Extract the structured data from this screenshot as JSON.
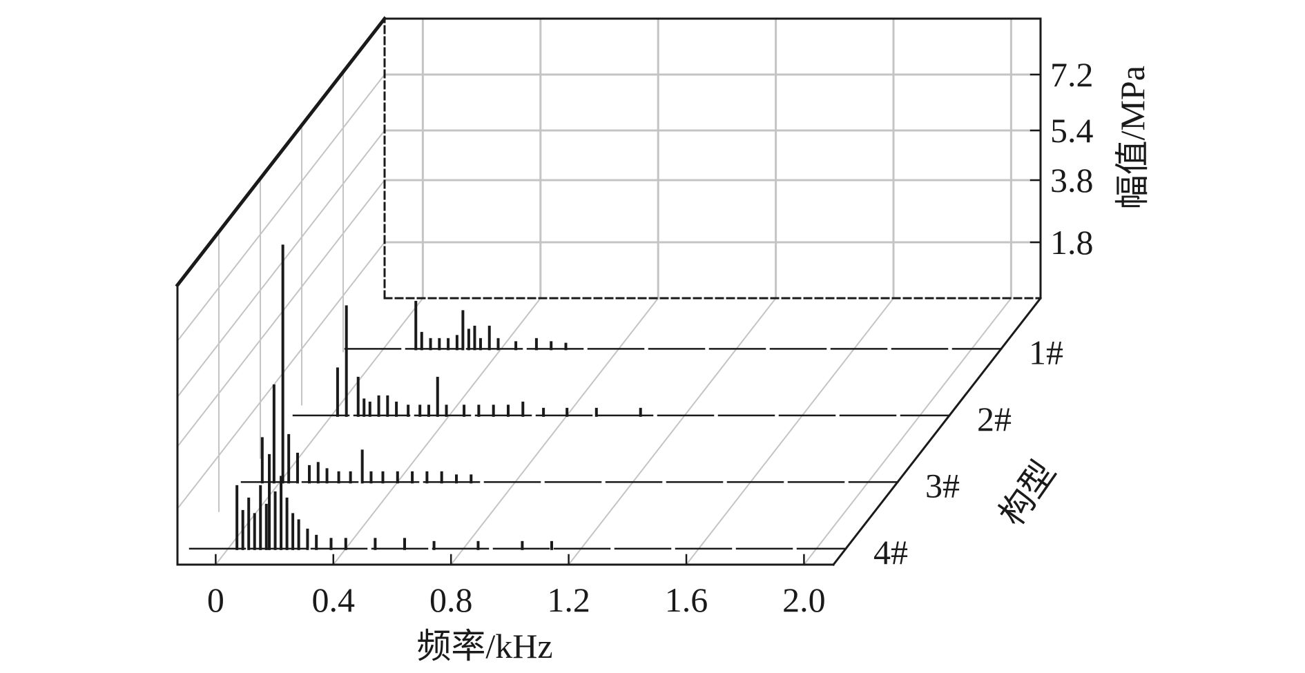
{
  "chart_data": {
    "type": "bar",
    "subtype": "3d-waterfall-spectrum",
    "title": "",
    "xlabel": "频率/kHz",
    "ylabel": "幅值/MPa",
    "zlabel": "构型",
    "x_ticks": [
      "0",
      "0.4",
      "0.8",
      "1.2",
      "1.6",
      "2.0"
    ],
    "y_ticks": [
      "1.8",
      "3.8",
      "5.4",
      "7.2"
    ],
    "xlim": [
      -0.13,
      2.1
    ],
    "ylim": [
      0,
      9.0
    ],
    "grid": true,
    "colors": {
      "bars": "#1a1a1a",
      "grid": "#c4c4c4",
      "axis": "#1a1a1a"
    },
    "series": [
      {
        "name": "1#",
        "points": [
          [
            0.11,
            1.5
          ],
          [
            0.13,
            0.5
          ],
          [
            0.16,
            0.3
          ],
          [
            0.19,
            0.3
          ],
          [
            0.22,
            0.3
          ],
          [
            0.25,
            0.4
          ],
          [
            0.27,
            1.2
          ],
          [
            0.29,
            0.6
          ],
          [
            0.31,
            0.7
          ],
          [
            0.33,
            0.3
          ],
          [
            0.36,
            0.7
          ],
          [
            0.39,
            0.3
          ],
          [
            0.45,
            0.2
          ],
          [
            0.52,
            0.3
          ],
          [
            0.57,
            0.2
          ],
          [
            0.62,
            0.15
          ]
        ]
      },
      {
        "name": "2#",
        "points": [
          [
            0.02,
            1.5
          ],
          [
            0.05,
            3.5
          ],
          [
            0.09,
            1.2
          ],
          [
            0.11,
            0.5
          ],
          [
            0.13,
            0.4
          ],
          [
            0.16,
            0.6
          ],
          [
            0.19,
            0.6
          ],
          [
            0.22,
            0.4
          ],
          [
            0.26,
            0.3
          ],
          [
            0.3,
            0.3
          ],
          [
            0.33,
            0.3
          ],
          [
            0.36,
            1.2
          ],
          [
            0.39,
            0.3
          ],
          [
            0.45,
            0.3
          ],
          [
            0.5,
            0.3
          ],
          [
            0.55,
            0.3
          ],
          [
            0.6,
            0.3
          ],
          [
            0.65,
            0.4
          ],
          [
            0.72,
            0.2
          ],
          [
            0.8,
            0.2
          ],
          [
            0.9,
            0.2
          ],
          [
            1.05,
            0.2
          ]
        ]
      },
      {
        "name": "3#",
        "points": [
          [
            -0.06,
            1.4
          ],
          [
            -0.02,
            3.1
          ],
          [
            0.01,
            7.6
          ],
          [
            0.03,
            1.5
          ],
          [
            0.06,
            0.9
          ],
          [
            0.1,
            0.5
          ],
          [
            0.13,
            0.6
          ],
          [
            0.16,
            0.4
          ],
          [
            0.2,
            0.3
          ],
          [
            0.24,
            0.3
          ],
          [
            0.28,
            1.0
          ],
          [
            0.31,
            0.3
          ],
          [
            0.35,
            0.3
          ],
          [
            0.4,
            0.3
          ],
          [
            0.45,
            0.3
          ],
          [
            0.5,
            0.3
          ],
          [
            0.55,
            0.3
          ],
          [
            0.6,
            0.2
          ],
          [
            0.65,
            0.2
          ]
        ]
      },
      {
        "name": "4#",
        "points": [
          [
            0.03,
            2.0
          ],
          [
            0.05,
            1.2
          ],
          [
            0.07,
            1.6
          ],
          [
            0.09,
            1.1
          ],
          [
            0.11,
            2.0
          ],
          [
            0.13,
            1.4
          ],
          [
            0.14,
            3.0
          ],
          [
            0.16,
            1.8
          ],
          [
            0.18,
            2.3
          ],
          [
            0.2,
            1.6
          ],
          [
            0.22,
            1.1
          ],
          [
            0.24,
            0.9
          ],
          [
            0.27,
            0.6
          ],
          [
            0.3,
            0.4
          ],
          [
            0.35,
            0.3
          ],
          [
            0.4,
            0.3
          ],
          [
            0.5,
            0.3
          ],
          [
            0.6,
            0.3
          ],
          [
            0.7,
            0.2
          ],
          [
            0.85,
            0.2
          ],
          [
            1.0,
            0.2
          ],
          [
            1.1,
            0.2
          ]
        ]
      }
    ]
  }
}
